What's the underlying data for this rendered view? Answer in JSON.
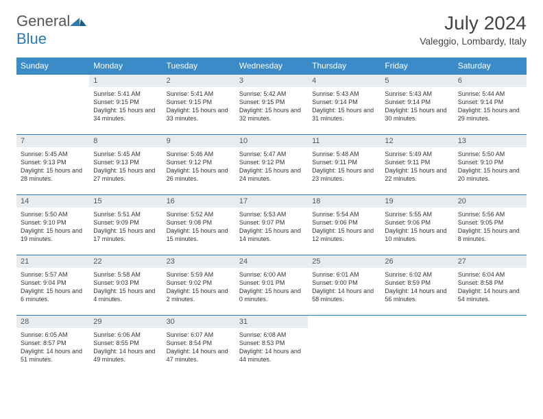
{
  "brand": {
    "name_a": "General",
    "name_b": "Blue"
  },
  "title": "July 2024",
  "location": "Valeggio, Lombardy, Italy",
  "colors": {
    "header_bg": "#3b8bc9",
    "daynum_bg": "#e9ecef",
    "rule": "#2a7ab8",
    "text": "#333333",
    "bg": "#ffffff"
  },
  "weekdays": [
    "Sunday",
    "Monday",
    "Tuesday",
    "Wednesday",
    "Thursday",
    "Friday",
    "Saturday"
  ],
  "start_offset": 1,
  "days": [
    {
      "n": 1,
      "sr": "5:41 AM",
      "ss": "9:15 PM",
      "dl": "15 hours and 34 minutes."
    },
    {
      "n": 2,
      "sr": "5:41 AM",
      "ss": "9:15 PM",
      "dl": "15 hours and 33 minutes."
    },
    {
      "n": 3,
      "sr": "5:42 AM",
      "ss": "9:15 PM",
      "dl": "15 hours and 32 minutes."
    },
    {
      "n": 4,
      "sr": "5:43 AM",
      "ss": "9:14 PM",
      "dl": "15 hours and 31 minutes."
    },
    {
      "n": 5,
      "sr": "5:43 AM",
      "ss": "9:14 PM",
      "dl": "15 hours and 30 minutes."
    },
    {
      "n": 6,
      "sr": "5:44 AM",
      "ss": "9:14 PM",
      "dl": "15 hours and 29 minutes."
    },
    {
      "n": 7,
      "sr": "5:45 AM",
      "ss": "9:13 PM",
      "dl": "15 hours and 28 minutes."
    },
    {
      "n": 8,
      "sr": "5:45 AM",
      "ss": "9:13 PM",
      "dl": "15 hours and 27 minutes."
    },
    {
      "n": 9,
      "sr": "5:46 AM",
      "ss": "9:12 PM",
      "dl": "15 hours and 26 minutes."
    },
    {
      "n": 10,
      "sr": "5:47 AM",
      "ss": "9:12 PM",
      "dl": "15 hours and 24 minutes."
    },
    {
      "n": 11,
      "sr": "5:48 AM",
      "ss": "9:11 PM",
      "dl": "15 hours and 23 minutes."
    },
    {
      "n": 12,
      "sr": "5:49 AM",
      "ss": "9:11 PM",
      "dl": "15 hours and 22 minutes."
    },
    {
      "n": 13,
      "sr": "5:50 AM",
      "ss": "9:10 PM",
      "dl": "15 hours and 20 minutes."
    },
    {
      "n": 14,
      "sr": "5:50 AM",
      "ss": "9:10 PM",
      "dl": "15 hours and 19 minutes."
    },
    {
      "n": 15,
      "sr": "5:51 AM",
      "ss": "9:09 PM",
      "dl": "15 hours and 17 minutes."
    },
    {
      "n": 16,
      "sr": "5:52 AM",
      "ss": "9:08 PM",
      "dl": "15 hours and 15 minutes."
    },
    {
      "n": 17,
      "sr": "5:53 AM",
      "ss": "9:07 PM",
      "dl": "15 hours and 14 minutes."
    },
    {
      "n": 18,
      "sr": "5:54 AM",
      "ss": "9:06 PM",
      "dl": "15 hours and 12 minutes."
    },
    {
      "n": 19,
      "sr": "5:55 AM",
      "ss": "9:06 PM",
      "dl": "15 hours and 10 minutes."
    },
    {
      "n": 20,
      "sr": "5:56 AM",
      "ss": "9:05 PM",
      "dl": "15 hours and 8 minutes."
    },
    {
      "n": 21,
      "sr": "5:57 AM",
      "ss": "9:04 PM",
      "dl": "15 hours and 6 minutes."
    },
    {
      "n": 22,
      "sr": "5:58 AM",
      "ss": "9:03 PM",
      "dl": "15 hours and 4 minutes."
    },
    {
      "n": 23,
      "sr": "5:59 AM",
      "ss": "9:02 PM",
      "dl": "15 hours and 2 minutes."
    },
    {
      "n": 24,
      "sr": "6:00 AM",
      "ss": "9:01 PM",
      "dl": "15 hours and 0 minutes."
    },
    {
      "n": 25,
      "sr": "6:01 AM",
      "ss": "9:00 PM",
      "dl": "14 hours and 58 minutes."
    },
    {
      "n": 26,
      "sr": "6:02 AM",
      "ss": "8:59 PM",
      "dl": "14 hours and 56 minutes."
    },
    {
      "n": 27,
      "sr": "6:04 AM",
      "ss": "8:58 PM",
      "dl": "14 hours and 54 minutes."
    },
    {
      "n": 28,
      "sr": "6:05 AM",
      "ss": "8:57 PM",
      "dl": "14 hours and 51 minutes."
    },
    {
      "n": 29,
      "sr": "6:06 AM",
      "ss": "8:55 PM",
      "dl": "14 hours and 49 minutes."
    },
    {
      "n": 30,
      "sr": "6:07 AM",
      "ss": "8:54 PM",
      "dl": "14 hours and 47 minutes."
    },
    {
      "n": 31,
      "sr": "6:08 AM",
      "ss": "8:53 PM",
      "dl": "14 hours and 44 minutes."
    }
  ],
  "labels": {
    "sunrise": "Sunrise:",
    "sunset": "Sunset:",
    "daylight": "Daylight:"
  }
}
